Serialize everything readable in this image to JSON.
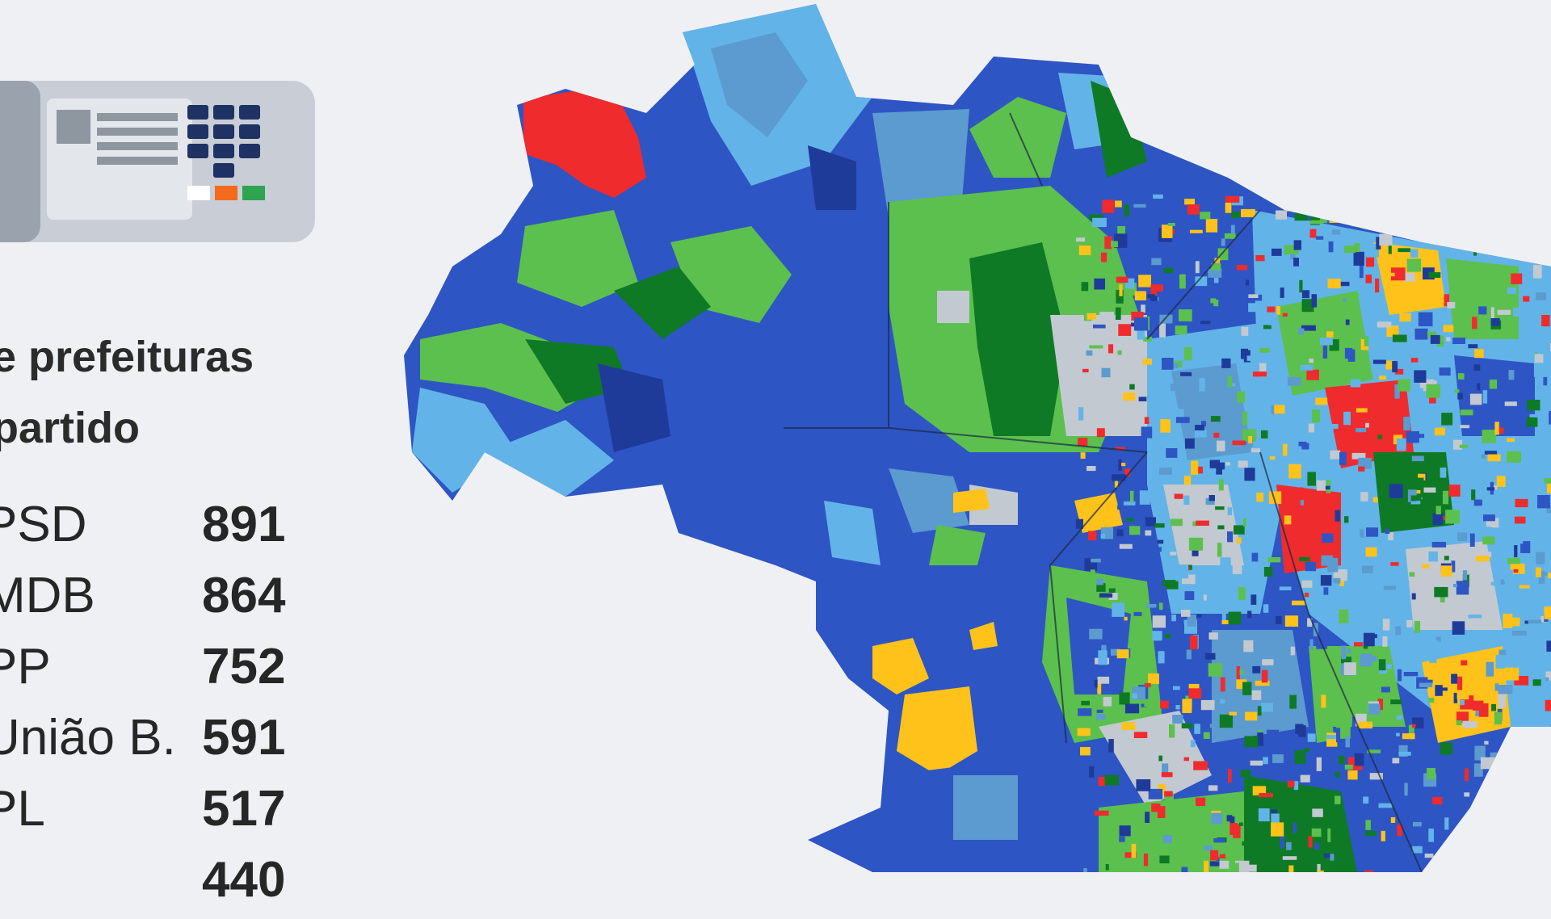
{
  "heading": {
    "line1": "e prefeituras",
    "line2": "partido"
  },
  "ranking": [
    {
      "party": "PSD",
      "count": "891"
    },
    {
      "party": "MDB",
      "count": "864"
    },
    {
      "party": "PP",
      "count": "752"
    },
    {
      "party": "Uniã­o B.",
      "count": "591"
    },
    {
      "party": "PL",
      "count": "517"
    },
    {
      "party": "",
      "count": "440"
    }
  ],
  "map": {
    "region": "Brazil",
    "colors": {
      "red": "#ef2b2d",
      "dark_blue": "#1f3b9a",
      "blue": "#2e55c4",
      "light_blue": "#62b4e8",
      "steel_blue": "#5b9bd0",
      "green": "#5cc04e",
      "dark_green": "#0e7a25",
      "yellow": "#ffc21a",
      "gray": "#c3c9d0",
      "background": "#eef0f3"
    }
  },
  "urna_icon": "voting-machine-icon"
}
